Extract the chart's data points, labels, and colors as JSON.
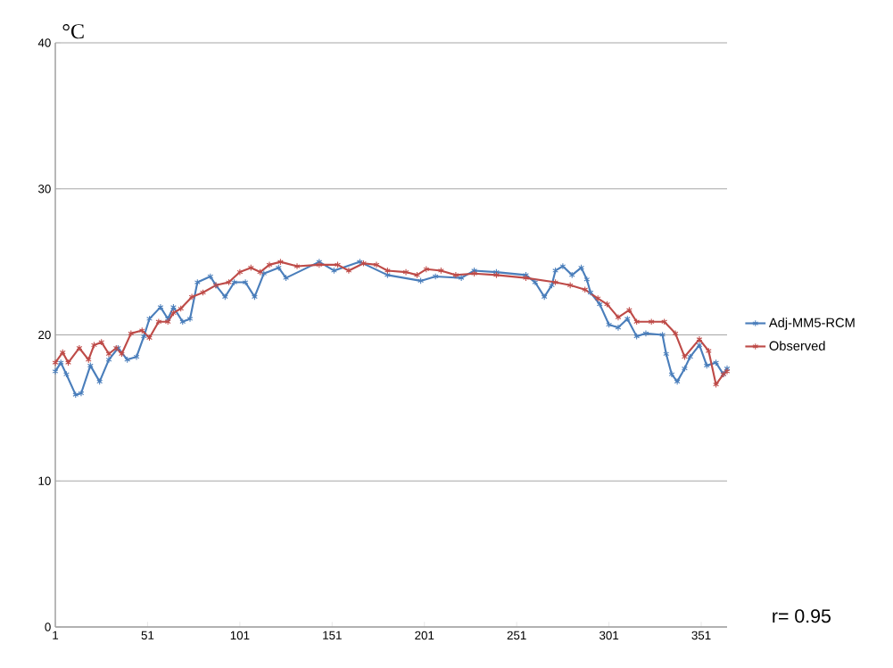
{
  "chart_data": {
    "type": "line",
    "ylabel": "°C",
    "xlim": [
      1,
      365
    ],
    "xticks": [
      1,
      51,
      101,
      151,
      201,
      251,
      301,
      351
    ],
    "ylim": [
      0,
      40
    ],
    "yticks": [
      0,
      10,
      20,
      30,
      40
    ],
    "grid": "y",
    "legend": "right",
    "marker": "cross",
    "line_style": "solid",
    "annotations": [
      "r= 0.95"
    ],
    "series": [
      {
        "name": "Adj-MM5-RCM",
        "color": "#4a7ebb",
        "x": [
          1,
          4,
          7,
          12,
          15,
          20,
          25,
          30,
          35,
          40,
          45,
          49,
          52,
          58,
          62,
          65,
          70,
          74,
          78,
          85,
          88,
          93,
          98,
          104,
          109,
          114,
          122,
          126,
          144,
          152,
          166,
          181,
          199,
          207,
          221,
          228,
          240,
          256,
          261,
          266,
          270,
          272,
          276,
          281,
          286,
          289,
          291,
          296,
          301,
          306,
          311,
          316,
          321,
          330,
          332,
          335,
          338,
          342,
          345,
          350,
          354,
          359,
          363,
          365
        ],
        "values": [
          17.5,
          18.1,
          17.3,
          15.9,
          16.0,
          17.9,
          16.8,
          18.3,
          19.1,
          18.3,
          18.5,
          19.9,
          21.1,
          21.9,
          21.1,
          21.9,
          20.9,
          21.1,
          23.6,
          24.0,
          23.4,
          22.6,
          23.6,
          23.6,
          22.6,
          24.2,
          24.6,
          23.9,
          25.0,
          24.4,
          25.0,
          24.1,
          23.7,
          24.0,
          23.9,
          24.4,
          24.3,
          24.1,
          23.6,
          22.6,
          23.4,
          24.4,
          24.7,
          24.1,
          24.6,
          23.8,
          22.9,
          22.1,
          20.7,
          20.5,
          21.1,
          19.9,
          20.1,
          20.0,
          18.7,
          17.3,
          16.8,
          17.7,
          18.5,
          19.3,
          17.9,
          18.1,
          17.3,
          17.7
        ]
      },
      {
        "name": "Observed",
        "color": "#be4b48",
        "x": [
          1,
          5,
          8,
          14,
          19,
          22,
          26,
          30,
          34,
          37,
          42,
          48,
          52,
          57,
          62,
          65,
          69,
          75,
          81,
          88,
          95,
          101,
          107,
          112,
          117,
          123,
          132,
          144,
          154,
          160,
          168,
          175,
          181,
          191,
          197,
          202,
          210,
          218,
          228,
          240,
          256,
          272,
          280,
          288,
          295,
          300,
          306,
          312,
          316,
          324,
          331,
          337,
          342,
          350,
          355,
          359,
          363,
          365
        ],
        "values": [
          18.1,
          18.8,
          18.1,
          19.1,
          18.3,
          19.3,
          19.5,
          18.7,
          19.1,
          18.7,
          20.1,
          20.3,
          19.8,
          20.9,
          20.9,
          21.5,
          21.8,
          22.6,
          22.9,
          23.4,
          23.6,
          24.3,
          24.6,
          24.3,
          24.8,
          25.0,
          24.7,
          24.8,
          24.8,
          24.4,
          24.9,
          24.8,
          24.4,
          24.3,
          24.1,
          24.5,
          24.4,
          24.1,
          24.2,
          24.1,
          23.9,
          23.6,
          23.4,
          23.1,
          22.5,
          22.1,
          21.2,
          21.7,
          20.9,
          20.9,
          20.9,
          20.1,
          18.5,
          19.7,
          18.9,
          16.6,
          17.3,
          17.5
        ]
      }
    ]
  }
}
